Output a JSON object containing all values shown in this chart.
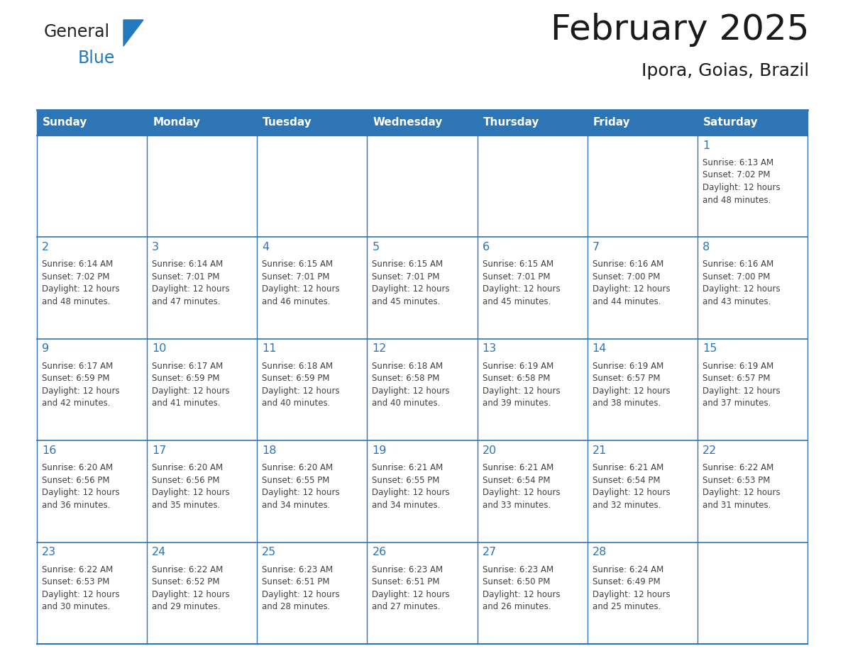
{
  "title": "February 2025",
  "subtitle": "Ipora, Goias, Brazil",
  "header_bg": "#2E75B6",
  "header_text_color": "#FFFFFF",
  "cell_bg": "#FFFFFF",
  "border_color": "#2E75B6",
  "day_number_color": "#2E75B6",
  "cell_text_color": "#404040",
  "days_of_week": [
    "Sunday",
    "Monday",
    "Tuesday",
    "Wednesday",
    "Thursday",
    "Friday",
    "Saturday"
  ],
  "logo_general_color": "#222222",
  "logo_blue_color": "#2478BE",
  "title_color": "#1a1a1a",
  "calendar": [
    [
      {
        "day": null,
        "info": ""
      },
      {
        "day": null,
        "info": ""
      },
      {
        "day": null,
        "info": ""
      },
      {
        "day": null,
        "info": ""
      },
      {
        "day": null,
        "info": ""
      },
      {
        "day": null,
        "info": ""
      },
      {
        "day": 1,
        "info": "Sunrise: 6:13 AM\nSunset: 7:02 PM\nDaylight: 12 hours\nand 48 minutes."
      }
    ],
    [
      {
        "day": 2,
        "info": "Sunrise: 6:14 AM\nSunset: 7:02 PM\nDaylight: 12 hours\nand 48 minutes."
      },
      {
        "day": 3,
        "info": "Sunrise: 6:14 AM\nSunset: 7:01 PM\nDaylight: 12 hours\nand 47 minutes."
      },
      {
        "day": 4,
        "info": "Sunrise: 6:15 AM\nSunset: 7:01 PM\nDaylight: 12 hours\nand 46 minutes."
      },
      {
        "day": 5,
        "info": "Sunrise: 6:15 AM\nSunset: 7:01 PM\nDaylight: 12 hours\nand 45 minutes."
      },
      {
        "day": 6,
        "info": "Sunrise: 6:15 AM\nSunset: 7:01 PM\nDaylight: 12 hours\nand 45 minutes."
      },
      {
        "day": 7,
        "info": "Sunrise: 6:16 AM\nSunset: 7:00 PM\nDaylight: 12 hours\nand 44 minutes."
      },
      {
        "day": 8,
        "info": "Sunrise: 6:16 AM\nSunset: 7:00 PM\nDaylight: 12 hours\nand 43 minutes."
      }
    ],
    [
      {
        "day": 9,
        "info": "Sunrise: 6:17 AM\nSunset: 6:59 PM\nDaylight: 12 hours\nand 42 minutes."
      },
      {
        "day": 10,
        "info": "Sunrise: 6:17 AM\nSunset: 6:59 PM\nDaylight: 12 hours\nand 41 minutes."
      },
      {
        "day": 11,
        "info": "Sunrise: 6:18 AM\nSunset: 6:59 PM\nDaylight: 12 hours\nand 40 minutes."
      },
      {
        "day": 12,
        "info": "Sunrise: 6:18 AM\nSunset: 6:58 PM\nDaylight: 12 hours\nand 40 minutes."
      },
      {
        "day": 13,
        "info": "Sunrise: 6:19 AM\nSunset: 6:58 PM\nDaylight: 12 hours\nand 39 minutes."
      },
      {
        "day": 14,
        "info": "Sunrise: 6:19 AM\nSunset: 6:57 PM\nDaylight: 12 hours\nand 38 minutes."
      },
      {
        "day": 15,
        "info": "Sunrise: 6:19 AM\nSunset: 6:57 PM\nDaylight: 12 hours\nand 37 minutes."
      }
    ],
    [
      {
        "day": 16,
        "info": "Sunrise: 6:20 AM\nSunset: 6:56 PM\nDaylight: 12 hours\nand 36 minutes."
      },
      {
        "day": 17,
        "info": "Sunrise: 6:20 AM\nSunset: 6:56 PM\nDaylight: 12 hours\nand 35 minutes."
      },
      {
        "day": 18,
        "info": "Sunrise: 6:20 AM\nSunset: 6:55 PM\nDaylight: 12 hours\nand 34 minutes."
      },
      {
        "day": 19,
        "info": "Sunrise: 6:21 AM\nSunset: 6:55 PM\nDaylight: 12 hours\nand 34 minutes."
      },
      {
        "day": 20,
        "info": "Sunrise: 6:21 AM\nSunset: 6:54 PM\nDaylight: 12 hours\nand 33 minutes."
      },
      {
        "day": 21,
        "info": "Sunrise: 6:21 AM\nSunset: 6:54 PM\nDaylight: 12 hours\nand 32 minutes."
      },
      {
        "day": 22,
        "info": "Sunrise: 6:22 AM\nSunset: 6:53 PM\nDaylight: 12 hours\nand 31 minutes."
      }
    ],
    [
      {
        "day": 23,
        "info": "Sunrise: 6:22 AM\nSunset: 6:53 PM\nDaylight: 12 hours\nand 30 minutes."
      },
      {
        "day": 24,
        "info": "Sunrise: 6:22 AM\nSunset: 6:52 PM\nDaylight: 12 hours\nand 29 minutes."
      },
      {
        "day": 25,
        "info": "Sunrise: 6:23 AM\nSunset: 6:51 PM\nDaylight: 12 hours\nand 28 minutes."
      },
      {
        "day": 26,
        "info": "Sunrise: 6:23 AM\nSunset: 6:51 PM\nDaylight: 12 hours\nand 27 minutes."
      },
      {
        "day": 27,
        "info": "Sunrise: 6:23 AM\nSunset: 6:50 PM\nDaylight: 12 hours\nand 26 minutes."
      },
      {
        "day": 28,
        "info": "Sunrise: 6:24 AM\nSunset: 6:49 PM\nDaylight: 12 hours\nand 25 minutes."
      },
      {
        "day": null,
        "info": ""
      }
    ]
  ]
}
